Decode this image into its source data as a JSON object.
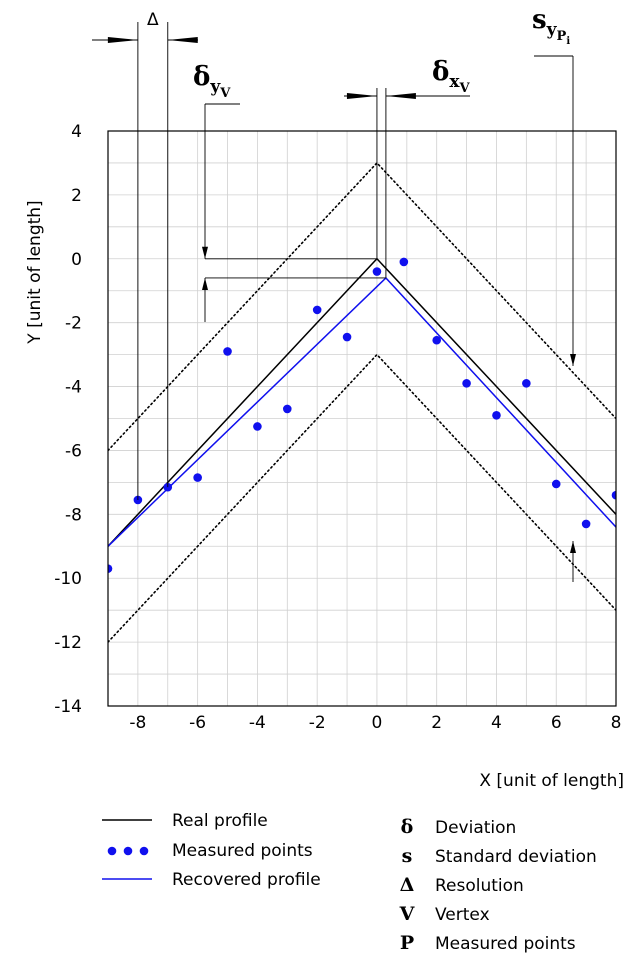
{
  "chart_data": {
    "type": "line",
    "xlabel": "X [unit of length]",
    "ylabel": "Y [unit of length]",
    "xlim": [
      -9,
      8
    ],
    "ylim": [
      -14,
      4
    ],
    "xticks": [
      -8,
      -6,
      -4,
      -2,
      0,
      2,
      4,
      6,
      8
    ],
    "yticks": [
      4,
      2,
      0,
      -2,
      -4,
      -6,
      -8,
      -10,
      -12,
      -14
    ],
    "grid": true,
    "legend_position": "bottom",
    "series": [
      {
        "name": "Real profile",
        "style": "solid",
        "color": "#000000",
        "x": [
          -9,
          0,
          8
        ],
        "y": [
          -9,
          0,
          -8
        ]
      },
      {
        "name": "Recovered profile",
        "style": "solid",
        "color": "#1010ee",
        "x": [
          -9,
          0.3,
          8
        ],
        "y": [
          -9,
          -0.6,
          -8.4
        ]
      },
      {
        "name": "",
        "style": "dotted",
        "color": "#000000",
        "x": [
          -9,
          0,
          8
        ],
        "y": [
          -6,
          3,
          -5
        ]
      },
      {
        "name": "",
        "style": "dotted",
        "color": "#000000",
        "x": [
          -9,
          0,
          8
        ],
        "y": [
          -12,
          -3,
          -11
        ]
      },
      {
        "name": "Measured points",
        "style": "markers",
        "color": "#1010ee",
        "x": [
          -9,
          -8,
          -7,
          -6,
          -5,
          -4,
          -3,
          -2,
          -1,
          0,
          0.9,
          2,
          3,
          4,
          5,
          6,
          7,
          8
        ],
        "y": [
          -9.7,
          -7.55,
          -7.15,
          -6.85,
          -2.9,
          -5.25,
          -4.7,
          -1.6,
          -2.45,
          -0.4,
          -0.1,
          -2.55,
          -3.9,
          -4.9,
          -3.9,
          -7.05,
          -8.3,
          -7.4
        ]
      }
    ],
    "annotations": [
      {
        "key": "resolution",
        "label": "Δ"
      },
      {
        "key": "deviation_y_vertex",
        "symbol": "δ",
        "sub": "y",
        "subsub": "V"
      },
      {
        "key": "deviation_x_vertex",
        "symbol": "δ",
        "sub": "x",
        "subsub": "V"
      },
      {
        "key": "std_dev_y_points",
        "symbol": "s",
        "sub": "y",
        "subsub": "P",
        "subsubsub": "i"
      }
    ],
    "legend": [
      {
        "label": "Real profile"
      },
      {
        "label": "Measured points"
      },
      {
        "label": "Recovered profile"
      }
    ],
    "symbol_legend": [
      {
        "symbol": "δ",
        "label": "Deviation"
      },
      {
        "symbol": "s",
        "label": "Standard deviation"
      },
      {
        "symbol": "Δ",
        "label": "Resolution"
      },
      {
        "symbol": "V",
        "label": "Vertex"
      },
      {
        "symbol": "P",
        "label": "Measured points"
      }
    ]
  }
}
